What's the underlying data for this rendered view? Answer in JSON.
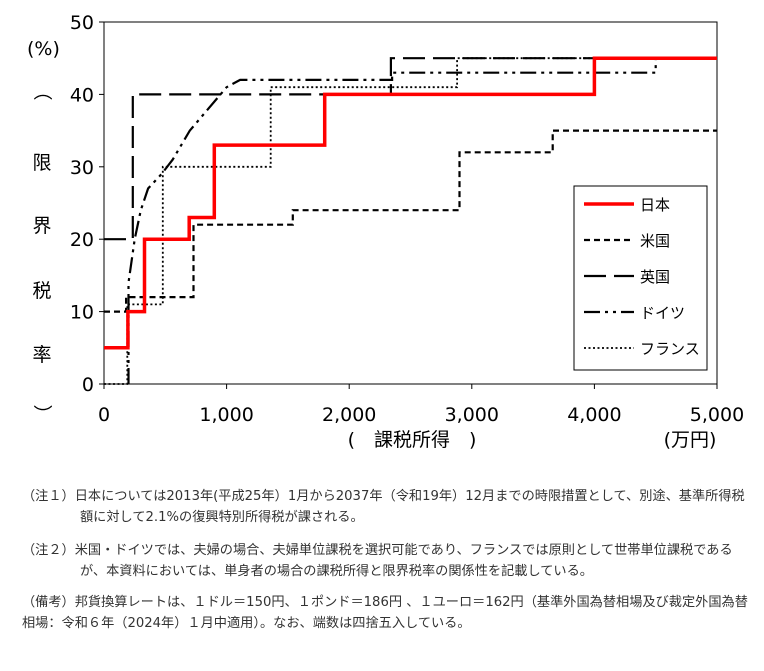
{
  "chart_data": {
    "type": "line",
    "title": "",
    "ylabel": "(限界税率)",
    "ylabel_chars": [
      "（",
      "限",
      "界",
      "税",
      "率",
      "）"
    ],
    "y_unit": "(%)",
    "xlabel": "(　課税所得　)",
    "x_unit": "(万円)",
    "xlim": [
      0,
      5000
    ],
    "ylim": [
      0,
      50
    ],
    "x_ticks": [
      0,
      1000,
      2000,
      3000,
      4000,
      5000
    ],
    "x_tick_labels": [
      "0",
      "1,000",
      "2,000",
      "3,000",
      "4,000",
      "5,000"
    ],
    "y_ticks": [
      0,
      10,
      20,
      30,
      40,
      50
    ],
    "y_tick_labels": [
      "0",
      "10",
      "20",
      "30",
      "40",
      "50"
    ],
    "legend_position": "right",
    "series": [
      {
        "name": "日本",
        "color": "#ff0000",
        "dash": "solid",
        "points": [
          [
            0,
            5
          ],
          [
            195,
            5
          ],
          [
            195,
            10
          ],
          [
            330,
            10
          ],
          [
            330,
            20
          ],
          [
            695,
            20
          ],
          [
            695,
            23
          ],
          [
            900,
            23
          ],
          [
            900,
            33
          ],
          [
            1800,
            33
          ],
          [
            1800,
            40
          ],
          [
            4000,
            40
          ],
          [
            4000,
            45
          ],
          [
            5000,
            45
          ]
        ]
      },
      {
        "name": "米国",
        "color": "#000000",
        "dash": "short-dash",
        "points": [
          [
            0,
            10
          ],
          [
            180,
            10
          ],
          [
            180,
            12
          ],
          [
            730,
            12
          ],
          [
            730,
            22
          ],
          [
            1540,
            22
          ],
          [
            1540,
            24
          ],
          [
            2900,
            24
          ],
          [
            2900,
            32
          ],
          [
            3660,
            32
          ],
          [
            3660,
            35
          ],
          [
            5000,
            35
          ]
        ]
      },
      {
        "name": "英国",
        "color": "#000000",
        "dash": "long-dash",
        "points": [
          [
            0,
            20
          ],
          [
            235,
            20
          ],
          [
            235,
            40
          ],
          [
            2340,
            40
          ],
          [
            2340,
            45
          ],
          [
            5000,
            45
          ]
        ]
      },
      {
        "name": "ドイツ",
        "color": "#000000",
        "dash": "dash-dot-dot",
        "points": [
          [
            200,
            0
          ],
          [
            200,
            14
          ],
          [
            250,
            20
          ],
          [
            300,
            24
          ],
          [
            360,
            27
          ],
          [
            470,
            29
          ],
          [
            560,
            31
          ],
          [
            700,
            35
          ],
          [
            1000,
            41
          ],
          [
            1110,
            42
          ],
          [
            2350,
            42
          ],
          [
            2350,
            43
          ],
          [
            4500,
            43
          ],
          [
            4500,
            45
          ]
        ]
      },
      {
        "name": "フランス",
        "color": "#000000",
        "dash": "dotted",
        "points": [
          [
            0,
            0
          ],
          [
            190,
            0
          ],
          [
            190,
            11
          ],
          [
            480,
            11
          ],
          [
            480,
            30
          ],
          [
            1360,
            30
          ],
          [
            1360,
            41
          ],
          [
            2880,
            41
          ],
          [
            2880,
            45
          ],
          [
            5000,
            45
          ]
        ]
      }
    ]
  },
  "notes": [
    "（注１）日本については2013年(平成25年）1月から2037年（令和19年）12月までの時限措置として、別途、基準所得税額に対して2.1%の復興特別所得税が課される。",
    "（注２）米国・ドイツでは、夫婦の場合、夫婦単位課税を選択可能であり、フランスでは原則として世帯単位課税であるが、本資料においては、単身者の場合の課税所得と限界税率の関係性を記載している。",
    "（備考）邦貨換算レートは、１ドル＝150円、１ポンド＝186円 、１ユーロ＝162円（基準外国為替相場及び裁定外国為替相場：令和６年（2024年）１月中適用）。なお、端数は四捨五入している。"
  ]
}
